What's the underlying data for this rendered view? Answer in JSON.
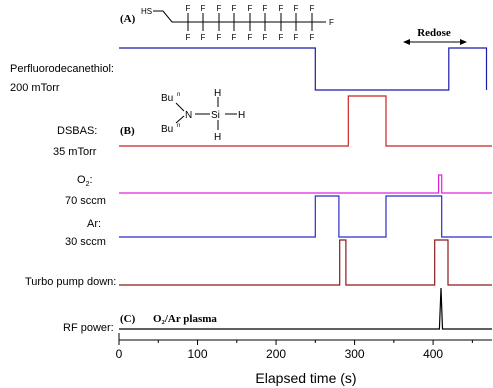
{
  "chart_data": {
    "type": "line",
    "xlabel": "Elapsed time (s)",
    "xlim": [
      0,
      475
    ],
    "xticks": [
      0,
      100,
      200,
      300,
      400
    ],
    "series": [
      {
        "label_lines": [
          "Perfluorodecanethiol:",
          "200 mTorr"
        ],
        "color": "#1a1aa6",
        "points": [
          [
            0,
            1
          ],
          [
            250,
            1
          ],
          [
            250,
            0
          ],
          [
            420,
            0
          ],
          [
            420,
            1
          ],
          [
            468,
            1
          ],
          [
            468,
            0
          ]
        ]
      },
      {
        "label_lines": [
          "DSBAS:",
          "35 mTorr"
        ],
        "color": "#cc2222",
        "points": [
          [
            0,
            0
          ],
          [
            292,
            0
          ],
          [
            292,
            1
          ],
          [
            340,
            1
          ],
          [
            340,
            0
          ],
          [
            475,
            0
          ]
        ]
      },
      {
        "label_lines": [
          "O",
          "2",
          ":",
          "70 sccm"
        ],
        "color": "#e020e0",
        "points": [
          [
            0,
            0
          ],
          [
            407,
            0
          ],
          [
            407,
            1
          ],
          [
            411,
            1
          ],
          [
            411,
            0
          ],
          [
            475,
            0
          ]
        ]
      },
      {
        "label_lines": [
          "Ar:",
          "30 sccm"
        ],
        "color": "#2a2acc",
        "points": [
          [
            0,
            0
          ],
          [
            250,
            0
          ],
          [
            250,
            1
          ],
          [
            280,
            1
          ],
          [
            280,
            0
          ],
          [
            340,
            0
          ],
          [
            340,
            1
          ],
          [
            411,
            1
          ],
          [
            411,
            0
          ],
          [
            475,
            0
          ]
        ]
      },
      {
        "label_lines": [
          "Turbo pump down:"
        ],
        "color": "#8b1a1a",
        "points": [
          [
            0,
            0
          ],
          [
            281,
            0
          ],
          [
            281,
            1
          ],
          [
            289,
            1
          ],
          [
            289,
            0
          ],
          [
            402,
            0
          ],
          [
            402,
            1
          ],
          [
            419,
            1
          ],
          [
            419,
            0
          ],
          [
            475,
            0
          ]
        ]
      },
      {
        "label_lines": [
          "RF power:"
        ],
        "color": "#000000",
        "points": [
          [
            0,
            0
          ],
          [
            408,
            0
          ],
          [
            410,
            1
          ],
          [
            412,
            0
          ],
          [
            475,
            0
          ]
        ]
      }
    ],
    "annotations": {
      "panel_a": "(A)",
      "panel_b": "(B)",
      "panel_c": "(C)",
      "redose": "Redose",
      "plasma": "O₂/Ar plasma"
    },
    "molecule_a": {
      "hs": "HS",
      "f": "F"
    },
    "molecule_b": {
      "bu": "Bu",
      "bu_sup": "n",
      "n": "N",
      "si": "Si",
      "h": "H"
    }
  }
}
